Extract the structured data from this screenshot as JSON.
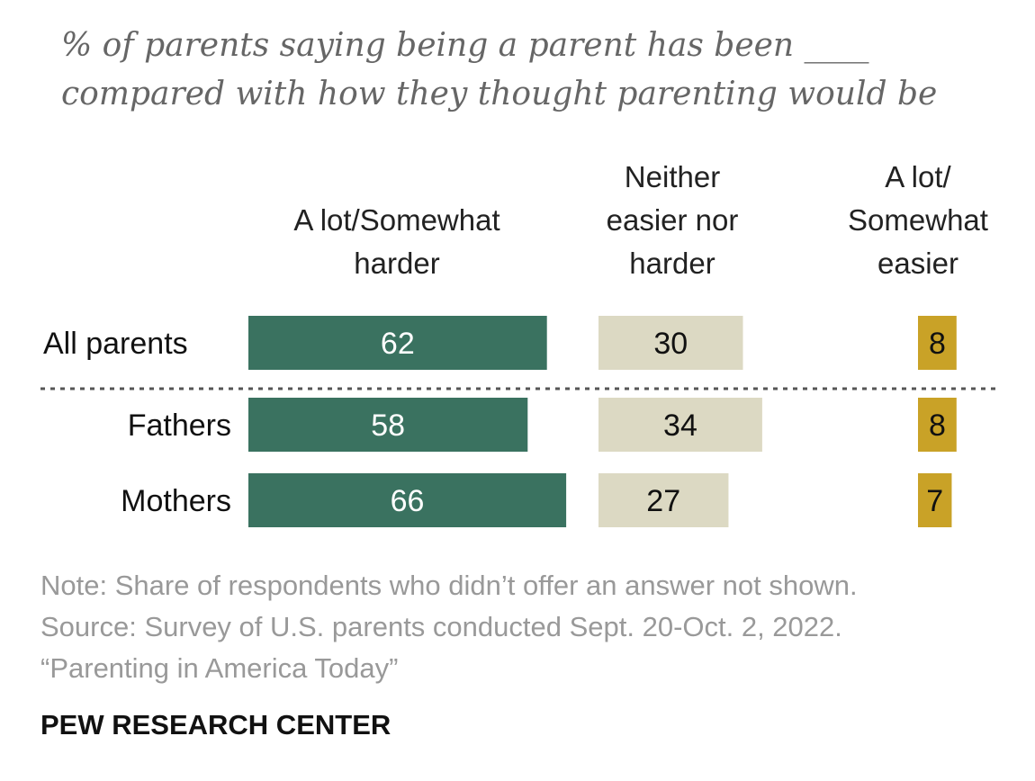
{
  "chart_data": {
    "type": "bar",
    "title_line1": "% of parents saying being a parent has been ____",
    "title_line2": "compared with how they thought parenting would be",
    "categories": [
      "All parents",
      "Fathers",
      "Mothers"
    ],
    "series": [
      {
        "name": "A lot/Somewhat harder",
        "header_lines": [
          "A lot/Somewhat",
          "harder"
        ],
        "color": "#3a7260",
        "text_color": "#ffffff",
        "values": [
          62,
          58,
          66
        ]
      },
      {
        "name": "Neither easier nor harder",
        "header_lines": [
          "Neither",
          "easier nor",
          "harder"
        ],
        "color": "#dcd9c3",
        "text_color": "#111111",
        "values": [
          30,
          34,
          27
        ]
      },
      {
        "name": "A lot/Somewhat easier",
        "header_lines": [
          "A lot/",
          "Somewhat",
          "easier"
        ],
        "color": "#c9a227",
        "text_color": "#111111",
        "values": [
          8,
          8,
          7
        ]
      }
    ],
    "separator_after": "All parents",
    "xlabel": "",
    "ylabel": ""
  },
  "note_lines": [
    "Note: Share of respondents who didn’t offer an answer not shown.",
    "Source: Survey of U.S. parents conducted Sept. 20-Oct. 2, 2022.",
    "“Parenting in America Today”"
  ],
  "footer": "PEW RESEARCH CENTER"
}
